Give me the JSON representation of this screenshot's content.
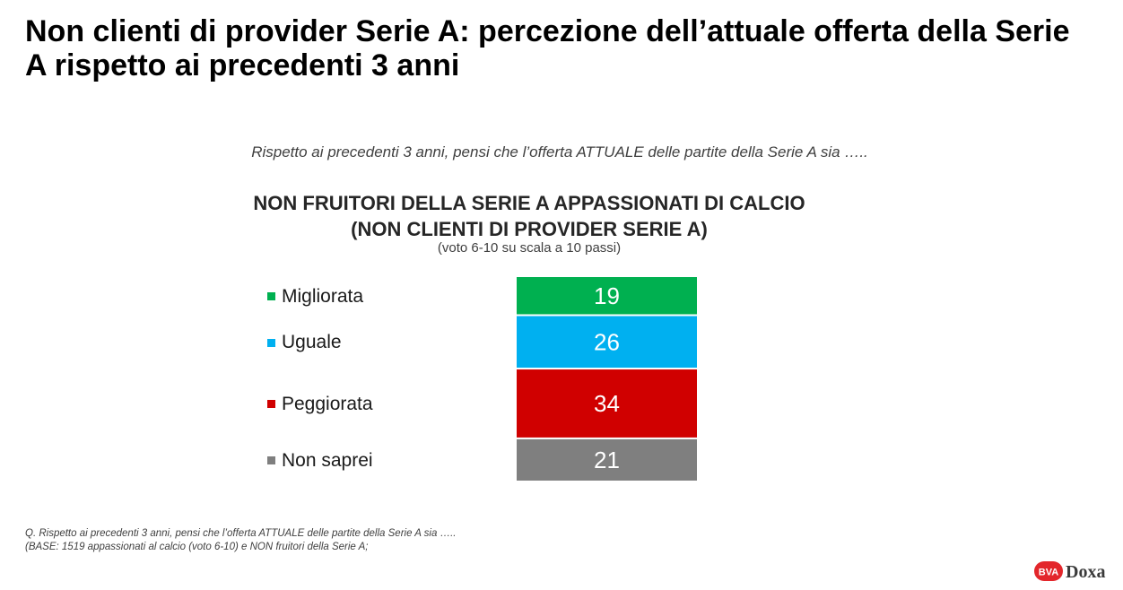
{
  "title": "Non clienti di provider Serie A: percezione dell’attuale offerta della Serie A rispetto ai precedenti 3 anni",
  "question": "Rispetto ai precedenti 3 anni, pensi che l’offerta ATTUALE delle partite della Serie A sia …..",
  "chart_heading_line1": "NON FRUITORI DELLA SERIE A APPASSIONATI DI CALCIO",
  "chart_heading_line2": "(NON CLIENTI DI PROVIDER SERIE A)",
  "chart_note": "(voto 6-10 su scala a 10 passi)",
  "chart_data": {
    "type": "bar",
    "stacked": true,
    "orientation": "vertical",
    "categories": [
      "Migliorata",
      "Uguale",
      "Peggiorata",
      "Non saprei"
    ],
    "values": [
      19,
      26,
      34,
      21
    ],
    "colors": [
      "#00b050",
      "#00b0f0",
      "#d00000",
      "#7f7f7f"
    ],
    "legend_position": "left",
    "grid": false
  },
  "footnote_line1": "Q. Rispetto ai precedenti 3 anni, pensi che l’offerta ATTUALE delle partite della Serie A sia …..",
  "footnote_line2": "(BASE: 1519 appassionati al calcio (voto 6-10) e NON fruitori della Serie A;",
  "logo": {
    "mark_text": "BVA",
    "brand_text": "Doxa",
    "mark_color": "#e3262b"
  }
}
